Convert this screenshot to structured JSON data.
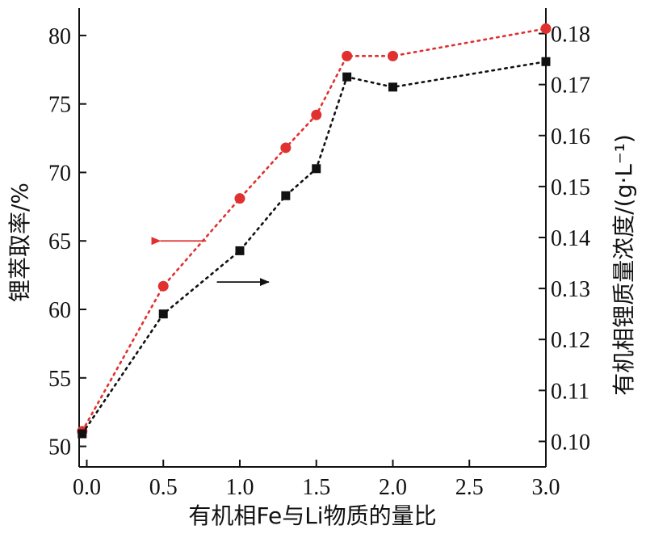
{
  "chart_data": {
    "type": "line",
    "xlabel": "有机相Fe与Li物质的量比",
    "ylabel_left": "锂萃取率/%",
    "ylabel_right": "有机相锂质量浓度/(g·L⁻¹)",
    "xlim": [
      -0.05,
      3.0
    ],
    "ylim_left": [
      48.5,
      82.0
    ],
    "ylim_right": [
      0.095,
      0.185
    ],
    "x_ticks": [
      0.0,
      0.5,
      1.0,
      1.5,
      2.0,
      2.5,
      3.0
    ],
    "x_tick_labels": [
      "0.0",
      "0.5",
      "1.0",
      "1.5",
      "2.0",
      "2.5",
      "3.0"
    ],
    "y_left_ticks": [
      50,
      55,
      60,
      65,
      70,
      75,
      80
    ],
    "y_left_tick_labels": [
      "50",
      "55",
      "60",
      "65",
      "70",
      "75",
      "80"
    ],
    "y_right_ticks": [
      0.1,
      0.11,
      0.12,
      0.13,
      0.14,
      0.15,
      0.16,
      0.17,
      0.18
    ],
    "y_right_tick_labels": [
      "0.10",
      "0.11",
      "0.12",
      "0.13",
      "0.14",
      "0.15",
      "0.16",
      "0.17",
      "0.18"
    ],
    "grid": false,
    "series": [
      {
        "axis": "left",
        "color": "#e03030",
        "marker": "circle",
        "line_style": "dotted",
        "x": [
          -0.03,
          0.5,
          1.0,
          1.3,
          1.5,
          1.7,
          2.0,
          3.0
        ],
        "y": [
          51.1,
          61.7,
          68.1,
          71.8,
          74.2,
          78.5,
          78.5,
          80.5
        ]
      },
      {
        "axis": "right",
        "color": "#111111",
        "marker": "square",
        "line_style": "dotted",
        "x": [
          -0.03,
          0.5,
          1.0,
          1.3,
          1.5,
          1.7,
          2.0,
          3.0
        ],
        "y": [
          0.1015,
          0.125,
          0.1374,
          0.1482,
          0.1535,
          0.1715,
          0.1695,
          0.1745
        ]
      }
    ],
    "annotations": [
      {
        "type": "arrow",
        "direction": "left",
        "color": "#e03030",
        "x_from": 0.78,
        "x_to": 0.47,
        "y": 65.0,
        "axis": "left",
        "points_to_axis": "left"
      },
      {
        "type": "arrow",
        "direction": "right",
        "color": "#111111",
        "x_from": 0.85,
        "x_to": 1.2,
        "y": 62.0,
        "axis": "left",
        "points_to_axis": "right"
      }
    ]
  }
}
